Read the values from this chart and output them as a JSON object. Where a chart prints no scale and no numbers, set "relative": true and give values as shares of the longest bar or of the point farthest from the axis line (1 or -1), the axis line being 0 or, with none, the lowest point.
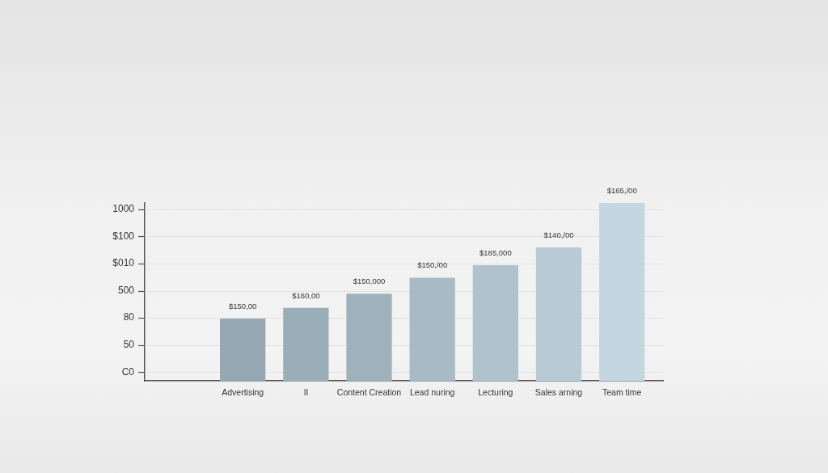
{
  "chart_data": {
    "type": "bar",
    "relative": true,
    "categories": [
      "Advertising",
      "Il",
      "Content Creation",
      "Lead nuring",
      "Lecturing",
      "Sales arning",
      "Team time"
    ],
    "values": [
      0.35,
      0.41,
      0.49,
      0.58,
      0.65,
      0.75,
      1
    ],
    "colors": [
      "#95a8b3",
      "#9aaeb8",
      "#9fb2bc",
      "#a8bbc5",
      "#b0c3cd",
      "#b8cbd5",
      "#c4d6df"
    ],
    "annotations": [
      "1000",
      "$100",
      "$010",
      "500",
      "80",
      "50",
      "C0",
      {
        "text": "$150,00",
        "x": "Advertising",
        "y": 0.35
      },
      {
        "text": "$160,00",
        "x": "Il",
        "y": 0.41
      },
      {
        "text": "$150,000",
        "x": "Content Creation",
        "y": 0.49
      },
      {
        "text": "$150,/00",
        "x": "Lead nuring",
        "y": 0.58
      },
      {
        "text": "$185,000",
        "x": "Lecturing",
        "y": 0.65
      },
      {
        "text": "$140,/00",
        "x": "Sales arning",
        "y": 0.75
      },
      {
        "text": "$165,/00",
        "x": "Team time",
        "y": 1
      }
    ],
    "grid": "y"
  }
}
